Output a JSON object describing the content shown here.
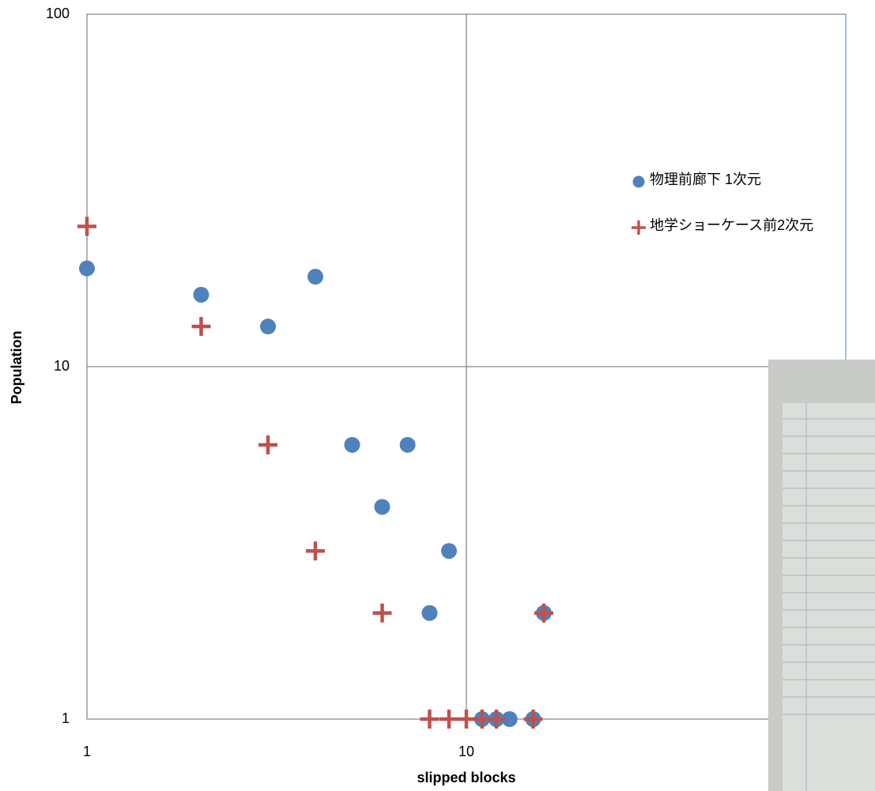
{
  "chart_data": {
    "type": "scatter",
    "x_label": "slipped blocks",
    "y_label": "Population",
    "xlog": true,
    "ylog": true,
    "grid": true,
    "legend": "upper right",
    "xlim": [
      1,
      100
    ],
    "ylim": [
      1,
      100
    ],
    "xticks": [
      1,
      10
    ],
    "yticks": [
      1,
      10,
      100
    ],
    "series": [
      {
        "name": "物理前廊下 1次元",
        "color": "#4f81bd",
        "marker": "circle",
        "x": [
          1,
          2,
          3,
          4,
          5,
          7,
          6,
          9,
          8,
          16,
          11,
          12,
          13,
          15
        ],
        "values": [
          19,
          16,
          13,
          18,
          6,
          6,
          4,
          3,
          2,
          2,
          1,
          1,
          1,
          1
        ]
      },
      {
        "name": "地学ショーケース前2次元",
        "color": "#c0504d",
        "marker": "plus",
        "x": [
          1,
          2,
          3,
          4,
          6,
          16,
          8,
          9,
          10,
          11,
          12,
          15
        ],
        "values": [
          25,
          13,
          6,
          3,
          2,
          2,
          1,
          1,
          1,
          1,
          1,
          1
        ]
      }
    ]
  }
}
